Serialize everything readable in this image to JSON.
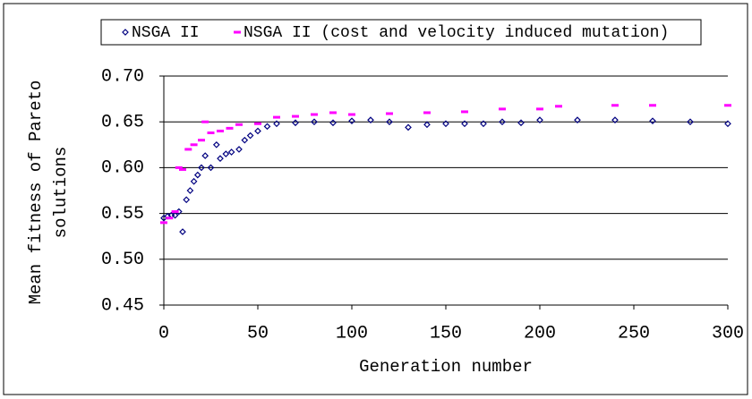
{
  "chart_data": {
    "type": "scatter",
    "xlabel": "Generation number",
    "ylabel": [
      "Mean fitness of Pareto",
      "solutions"
    ],
    "xlim": [
      0,
      300
    ],
    "xticks": [
      0,
      50,
      100,
      150,
      200,
      250,
      300
    ],
    "ylim": [
      0.45,
      0.7
    ],
    "yticks": [
      0.45,
      {
        "value": 0.5,
        "label": "0.50"
      },
      0.55,
      {
        "value": 0.6,
        "label": "0.60"
      },
      0.65,
      {
        "value": 0.7,
        "label": "0.70"
      }
    ],
    "grid": true,
    "legend": "top",
    "series": [
      {
        "name": "NSGA II",
        "color": "#000080",
        "marker": "diamond",
        "x": [
          0,
          2,
          4,
          6,
          8,
          10,
          12,
          14,
          16,
          18,
          20,
          22,
          25,
          28,
          30,
          33,
          36,
          40,
          43,
          46,
          50,
          55,
          60,
          70,
          80,
          90,
          100,
          110,
          120,
          130,
          140,
          150,
          160,
          170,
          180,
          190,
          200,
          220,
          240,
          260,
          280,
          300
        ],
        "values": [
          0.545,
          0.547,
          0.548,
          0.548,
          0.552,
          0.53,
          0.565,
          0.575,
          0.585,
          0.592,
          0.6,
          0.613,
          0.6,
          0.625,
          0.61,
          0.615,
          0.617,
          0.62,
          0.63,
          0.635,
          0.64,
          0.645,
          0.648,
          0.649,
          0.65,
          0.649,
          0.651,
          0.652,
          0.65,
          0.644,
          0.647,
          0.648,
          0.648,
          0.648,
          0.65,
          0.649,
          0.652,
          0.652,
          0.652,
          0.651,
          0.65,
          0.648
        ]
      },
      {
        "name": "NSGA II (cost and velocity induced mutation)",
        "color": "#ff00ff",
        "marker": "dash",
        "x": [
          0,
          3,
          6,
          8,
          10,
          13,
          16,
          20,
          22,
          25,
          30,
          35,
          40,
          50,
          60,
          70,
          80,
          90,
          100,
          120,
          140,
          160,
          180,
          200,
          210,
          240,
          260,
          300
        ],
        "values": [
          0.54,
          0.545,
          0.552,
          0.6,
          0.598,
          0.62,
          0.625,
          0.63,
          0.65,
          0.638,
          0.64,
          0.643,
          0.647,
          0.648,
          0.655,
          0.656,
          0.658,
          0.66,
          0.658,
          0.659,
          0.66,
          0.661,
          0.664,
          0.664,
          0.667,
          0.668,
          0.668,
          0.668
        ]
      }
    ]
  }
}
